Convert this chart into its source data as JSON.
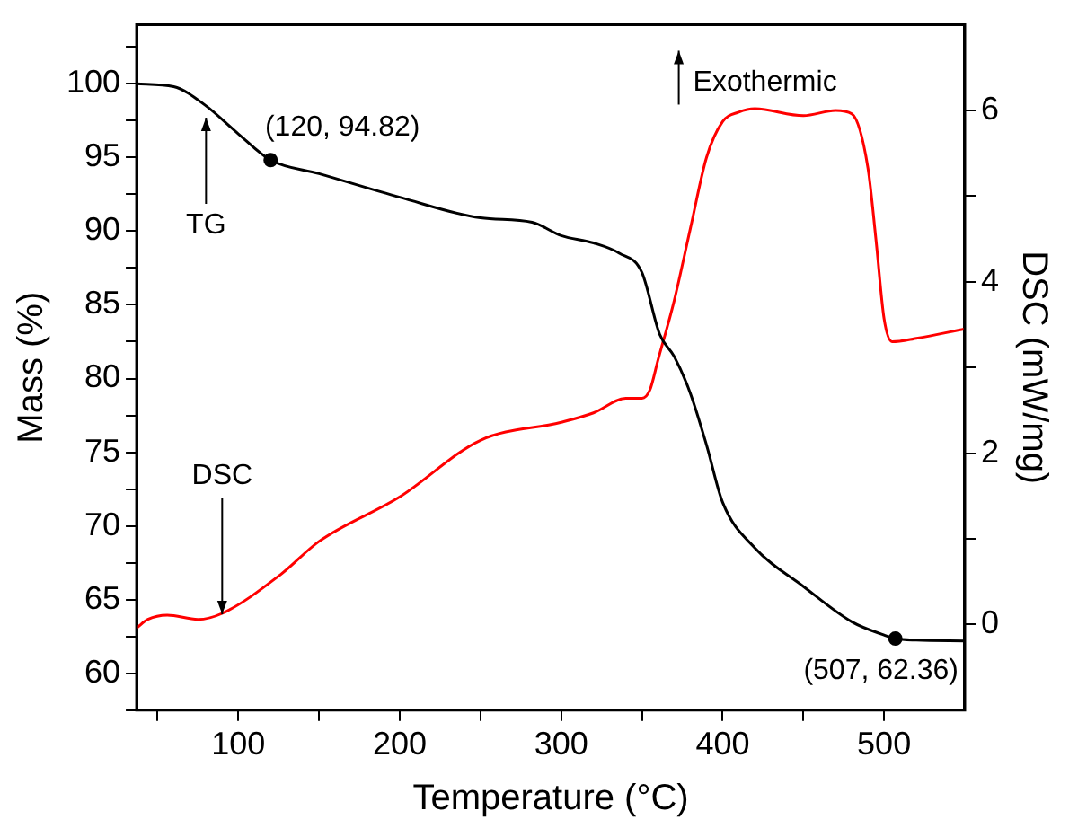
{
  "chart_data": {
    "type": "line",
    "xlabel": "Temperature (°C)",
    "ylabel": "Mass (%)",
    "y2label": "DSC (mW/mg)",
    "xlim": [
      37,
      550
    ],
    "xticks": [
      {
        "value": 50,
        "label": null
      },
      100,
      {
        "value": 150,
        "label": null
      },
      200,
      {
        "value": 250,
        "label": null
      },
      300,
      {
        "value": 350,
        "label": null
      },
      400,
      {
        "value": 450,
        "label": null
      },
      500
    ],
    "ylim": [
      57.5,
      104
    ],
    "yticks": [
      {
        "value": 57.5,
        "label": null
      },
      60,
      {
        "value": 62.5,
        "label": null
      },
      65,
      {
        "value": 67.5,
        "label": null
      },
      70,
      {
        "value": 72.5,
        "label": null
      },
      75,
      {
        "value": 77.5,
        "label": null
      },
      80,
      {
        "value": 82.5,
        "label": null
      },
      85,
      {
        "value": 87.5,
        "label": null
      },
      90,
      {
        "value": 92.5,
        "label": null
      },
      95,
      {
        "value": 97.5,
        "label": null
      },
      100,
      {
        "value": 102.5,
        "label": null
      }
    ],
    "y2lim": [
      -1,
      7
    ],
    "y2ticks": [
      0,
      {
        "value": 1,
        "label": null
      },
      2,
      {
        "value": 3,
        "label": null
      },
      4,
      {
        "value": 5,
        "label": null
      },
      6
    ],
    "grid": false,
    "legend": false,
    "marker": "none",
    "line_style": "solid",
    "series": [
      {
        "color": "#000000",
        "x": [
          37,
          60,
          80,
          100,
          120,
          150,
          200,
          250,
          282,
          300,
          320,
          336,
          350,
          361,
          370,
          380,
          390,
          400,
          420,
          450,
          480,
          500,
          507,
          520,
          550
        ],
        "values": [
          100,
          99.8,
          98.5,
          96.6,
          94.82,
          93.9,
          92.3,
          90.9,
          90.6,
          89.7,
          89.2,
          88.5,
          87.2,
          83,
          81.5,
          79,
          75.5,
          71.6,
          68.5,
          65.9,
          63.5,
          62.6,
          62.36,
          62.25,
          62.2
        ]
      },
      {
        "color": "#ff0000",
        "axis": "y2",
        "x": [
          37,
          44,
          56,
          75,
          90,
          126,
          150,
          200,
          250,
          300,
          320,
          340,
          350,
          355,
          360,
          370,
          380,
          390,
          400,
          410,
          420,
          450,
          470,
          480,
          490,
          495,
          500,
          505,
          520,
          550
        ],
        "values": [
          -0.04,
          0.06,
          0.11,
          0.06,
          0.13,
          0.58,
          0.97,
          1.49,
          2.15,
          2.36,
          2.47,
          2.64,
          2.64,
          2.74,
          3.09,
          3.78,
          4.62,
          5.45,
          5.87,
          5.98,
          6.02,
          5.94,
          6.0,
          5.96,
          5.33,
          4.49,
          3.57,
          3.3,
          3.34,
          3.45
        ]
      },
      {
        "type": "scatter",
        "color": "#000000",
        "marker": "circle",
        "x": [
          120,
          507
        ],
        "values": [
          94.82,
          62.36
        ]
      }
    ],
    "annotations": [
      {
        "text": "(120, 94.82)",
        "x": 120,
        "y": 94.82
      },
      {
        "text": "(507, 62.36)",
        "x": 507,
        "y": 62.36
      },
      {
        "text": "TG",
        "x": 80,
        "y": 97.7
      },
      {
        "text": "DSC",
        "x": 90,
        "y": 64.0
      },
      "Exothermic"
    ]
  }
}
